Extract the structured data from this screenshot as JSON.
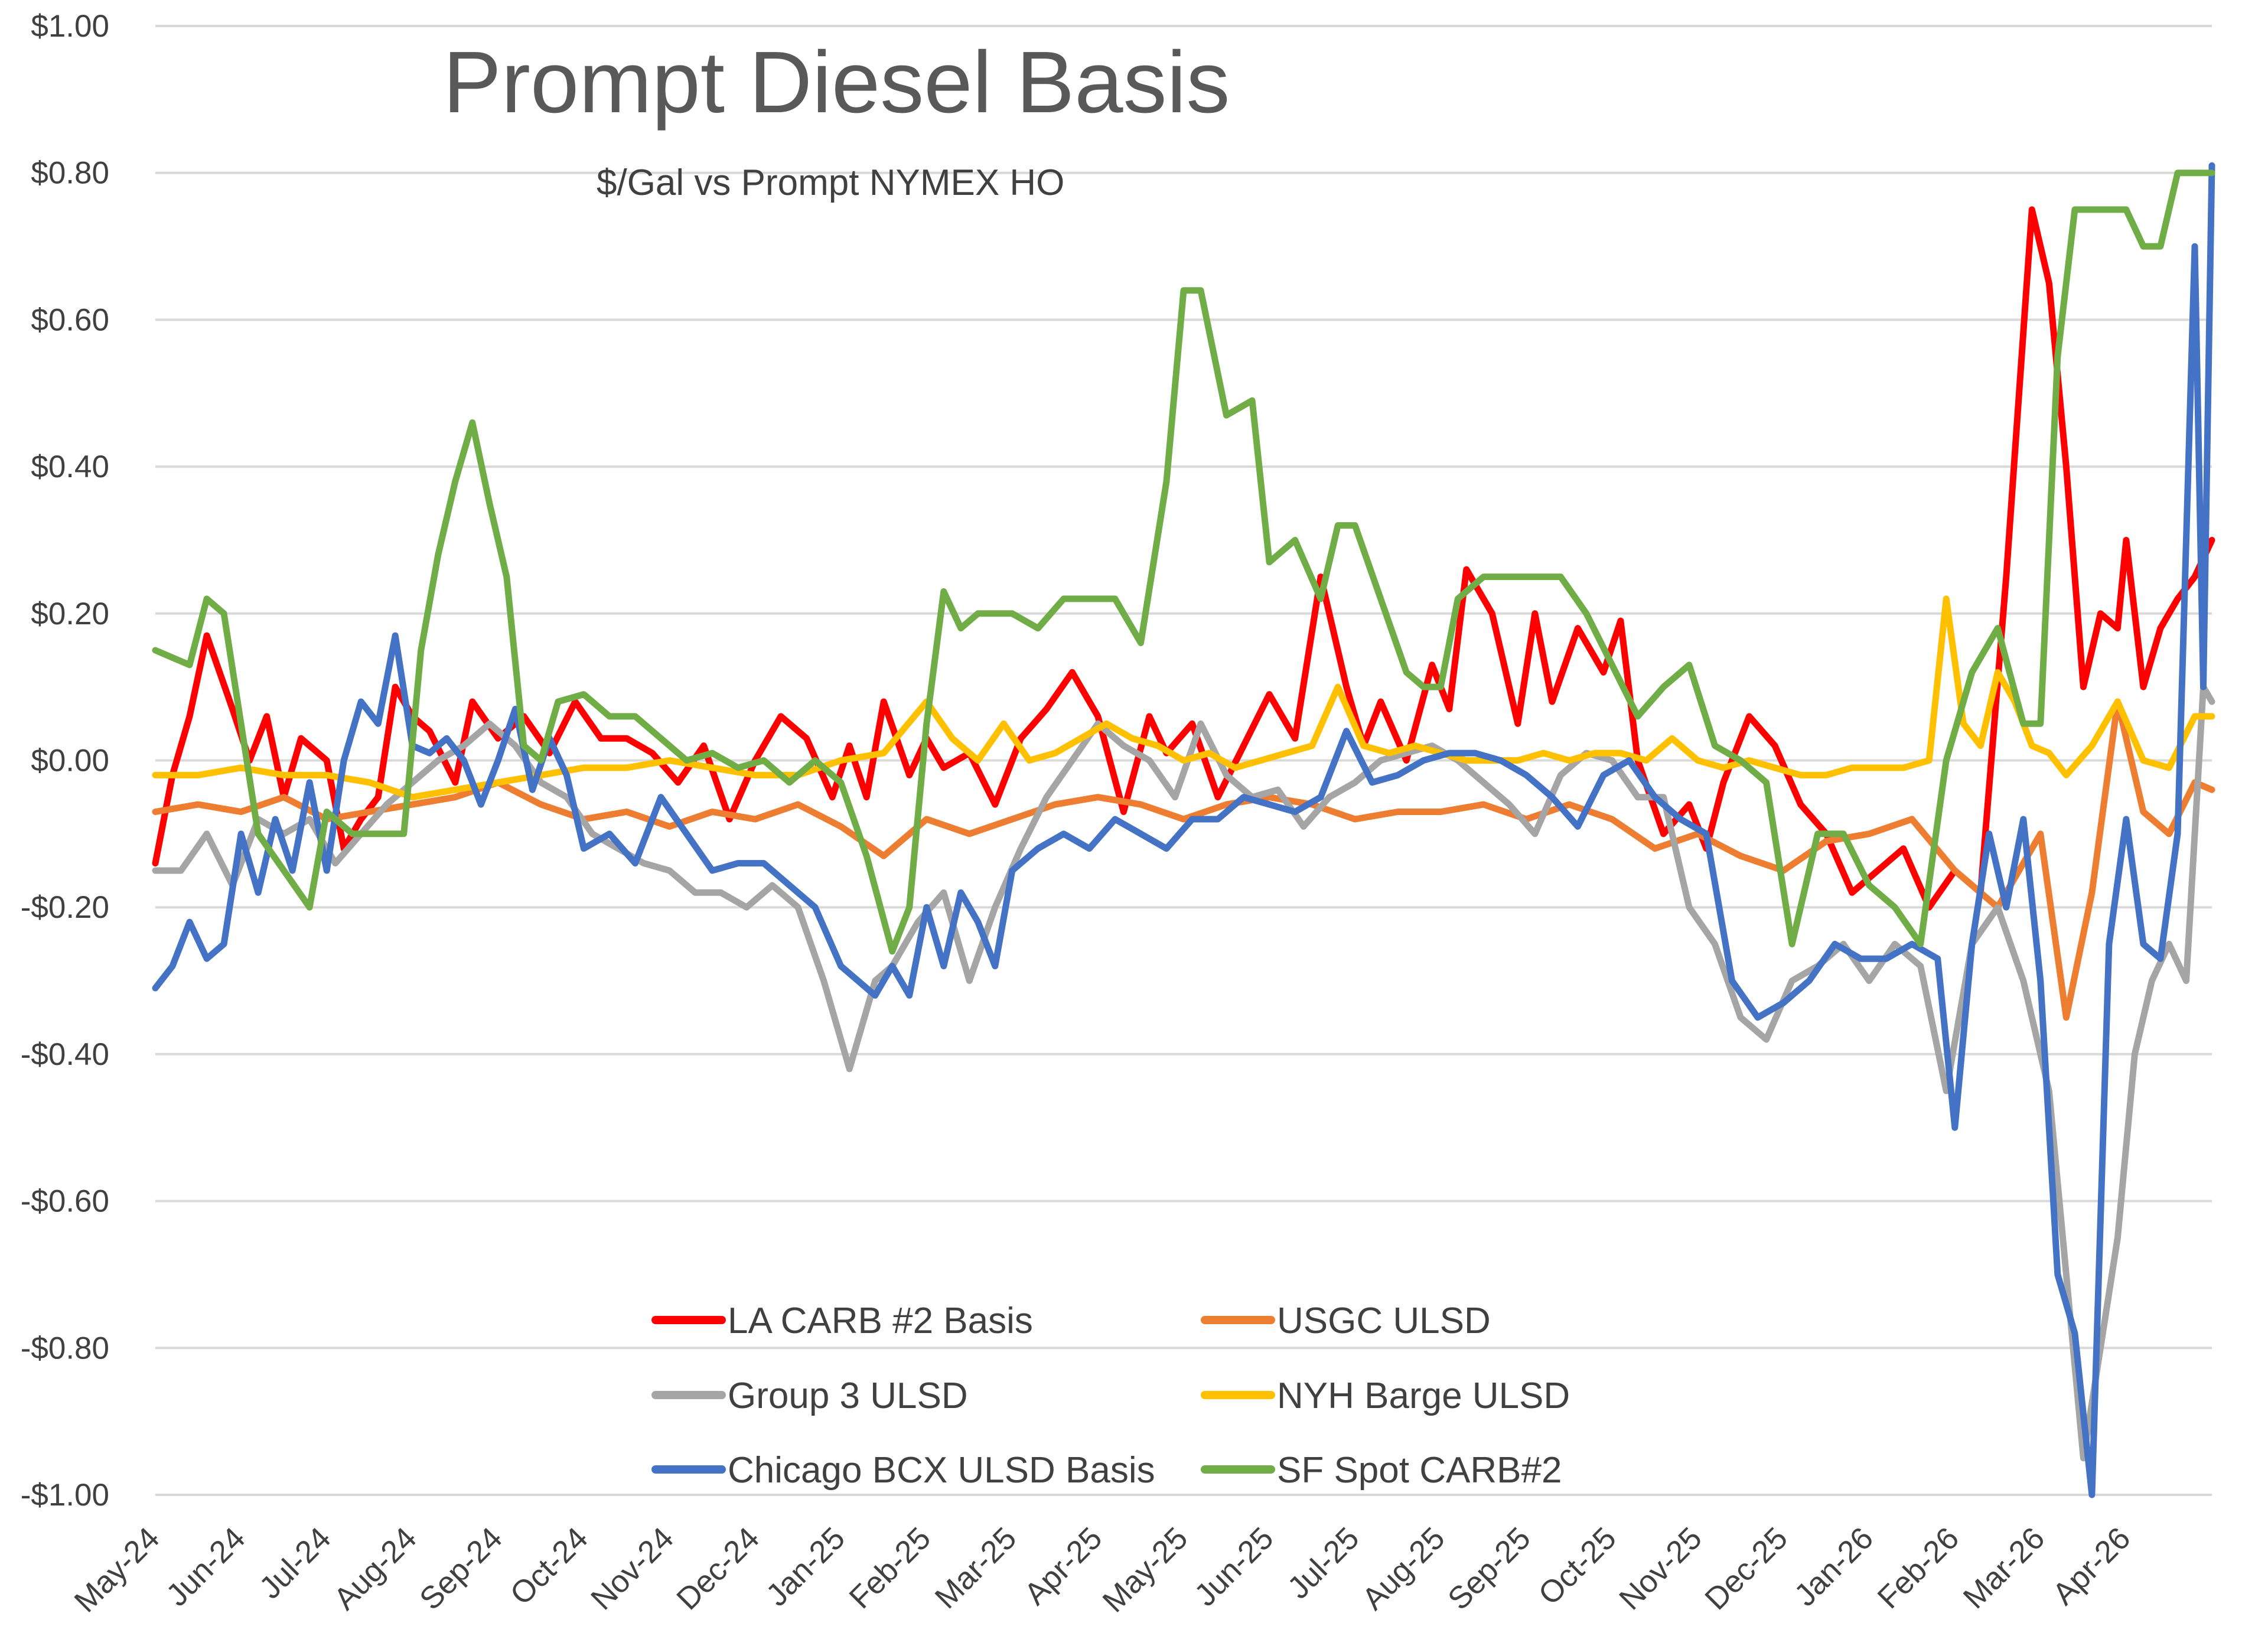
{
  "chart_data": {
    "type": "line",
    "title": "Prompt Diesel Basis",
    "subtitle": "$/Gal vs  Prompt NYMEX HO",
    "xlabel": "",
    "ylabel": "",
    "ylim": [
      -1.0,
      1.0
    ],
    "yticks": [
      1.0,
      0.8,
      0.6,
      0.4,
      0.2,
      0.0,
      -0.2,
      -0.4,
      -0.6,
      -0.8,
      -1.0
    ],
    "ytick_labels": [
      "$1.00",
      "$0.80",
      "$0.60",
      "$0.40",
      "$0.20",
      "$0.00",
      "-$0.20",
      "-$0.40",
      "-$0.60",
      "-$0.80",
      "-$1.00"
    ],
    "xlim": [
      0,
      24
    ],
    "x_categories": [
      "May-24",
      "Jun-24",
      "Jul-24",
      "Aug-24",
      "Sep-24",
      "Oct-24",
      "Nov-24",
      "Dec-24",
      "Jan-25",
      "Feb-25",
      "Mar-25",
      "Apr-25",
      "May-25",
      "Jun-25",
      "Jul-25",
      "Aug-25",
      "Sep-25",
      "Oct-25",
      "Nov-25",
      "Dec-25",
      "Jan-26",
      "Feb-26",
      "Mar-26",
      "Apr-26"
    ],
    "grid": "horizontal",
    "legend_position": "bottom-center",
    "series": [
      {
        "name": "LA CARB #2 Basis",
        "color": "#FF0000",
        "x": [
          0,
          0.2,
          0.4,
          0.6,
          0.9,
          1.1,
          1.3,
          1.5,
          1.7,
          2.0,
          2.2,
          2.4,
          2.6,
          2.8,
          3.0,
          3.2,
          3.5,
          3.7,
          4.0,
          4.3,
          4.6,
          4.9,
          5.2,
          5.5,
          5.8,
          6.1,
          6.4,
          6.7,
          7.0,
          7.3,
          7.6,
          7.9,
          8.1,
          8.3,
          8.5,
          8.8,
          9.0,
          9.2,
          9.5,
          9.8,
          10.1,
          10.4,
          10.7,
          11.0,
          11.3,
          11.6,
          11.8,
          12.1,
          12.4,
          12.7,
          13.0,
          13.3,
          13.6,
          13.9,
          14.1,
          14.3,
          14.6,
          14.9,
          15.1,
          15.3,
          15.6,
          15.9,
          16.1,
          16.3,
          16.6,
          16.9,
          17.1,
          17.3,
          17.6,
          17.9,
          18.1,
          18.3,
          18.6,
          18.9,
          19.2,
          19.5,
          19.8,
          20.1,
          20.4,
          20.7,
          21.0,
          21.3,
          21.6,
          21.9,
          22.1,
          22.3,
          22.5,
          22.7,
          22.9,
          23.0,
          23.2,
          23.4,
          23.6,
          23.8,
          24.0
        ],
        "y": [
          -0.14,
          -0.02,
          0.06,
          0.17,
          0.07,
          0.0,
          0.06,
          -0.05,
          0.03,
          0.0,
          -0.12,
          -0.08,
          -0.05,
          0.1,
          0.06,
          0.04,
          -0.03,
          0.08,
          0.03,
          0.06,
          0.01,
          0.08,
          0.03,
          0.03,
          0.01,
          -0.03,
          0.02,
          -0.08,
          0.0,
          0.06,
          0.03,
          -0.05,
          0.02,
          -0.05,
          0.08,
          -0.02,
          0.03,
          -0.01,
          0.01,
          -0.06,
          0.03,
          0.07,
          0.12,
          0.06,
          -0.07,
          0.06,
          0.01,
          0.05,
          -0.05,
          0.02,
          0.09,
          0.03,
          0.25,
          0.1,
          0.02,
          0.08,
          0.0,
          0.13,
          0.07,
          0.26,
          0.2,
          0.05,
          0.2,
          0.08,
          0.18,
          0.12,
          0.19,
          0.0,
          -0.1,
          -0.06,
          -0.12,
          -0.03,
          0.06,
          0.02,
          -0.06,
          -0.1,
          -0.18,
          -0.15,
          -0.12,
          -0.2,
          -0.15,
          -0.18,
          0.25,
          0.75,
          0.65,
          0.4,
          0.1,
          0.2,
          0.18,
          0.3,
          0.1,
          0.18,
          0.22,
          0.25,
          0.3
        ]
      },
      {
        "name": "USGC ULSD",
        "color": "#ED7D31",
        "x": [
          0,
          0.5,
          1.0,
          1.5,
          2.0,
          2.5,
          3.0,
          3.5,
          4.0,
          4.5,
          5.0,
          5.5,
          6.0,
          6.5,
          7.0,
          7.5,
          8.0,
          8.5,
          9.0,
          9.5,
          10.0,
          10.5,
          11.0,
          11.5,
          12.0,
          12.5,
          13.0,
          13.5,
          14.0,
          14.5,
          15.0,
          15.5,
          16.0,
          16.5,
          17.0,
          17.5,
          18.0,
          18.5,
          19.0,
          19.5,
          20.0,
          20.5,
          21.0,
          21.5,
          22.0,
          22.3,
          22.6,
          22.9,
          23.2,
          23.5,
          23.8,
          24.0
        ],
        "y": [
          -0.07,
          -0.06,
          -0.07,
          -0.05,
          -0.08,
          -0.07,
          -0.06,
          -0.05,
          -0.03,
          -0.06,
          -0.08,
          -0.07,
          -0.09,
          -0.07,
          -0.08,
          -0.06,
          -0.09,
          -0.13,
          -0.08,
          -0.1,
          -0.08,
          -0.06,
          -0.05,
          -0.06,
          -0.08,
          -0.06,
          -0.05,
          -0.06,
          -0.08,
          -0.07,
          -0.07,
          -0.06,
          -0.08,
          -0.06,
          -0.08,
          -0.12,
          -0.1,
          -0.13,
          -0.15,
          -0.11,
          -0.1,
          -0.08,
          -0.15,
          -0.2,
          -0.1,
          -0.35,
          -0.18,
          0.08,
          -0.07,
          -0.1,
          -0.03,
          -0.04
        ]
      },
      {
        "name": "Group 3 ULSD",
        "color": "#A5A5A5",
        "x": [
          0,
          0.3,
          0.6,
          0.9,
          1.2,
          1.5,
          1.8,
          2.1,
          2.4,
          2.7,
          3.0,
          3.3,
          3.6,
          3.9,
          4.2,
          4.5,
          4.8,
          5.1,
          5.4,
          5.7,
          6.0,
          6.3,
          6.6,
          6.9,
          7.2,
          7.5,
          7.8,
          8.1,
          8.4,
          8.6,
          8.9,
          9.2,
          9.5,
          9.8,
          10.1,
          10.4,
          10.7,
          11.0,
          11.3,
          11.6,
          11.9,
          12.2,
          12.5,
          12.8,
          13.1,
          13.4,
          13.7,
          14.0,
          14.3,
          14.6,
          14.9,
          15.2,
          15.5,
          15.8,
          16.1,
          16.4,
          16.7,
          17.0,
          17.3,
          17.6,
          17.9,
          18.2,
          18.5,
          18.8,
          19.1,
          19.4,
          19.7,
          20.0,
          20.3,
          20.6,
          20.9,
          21.2,
          21.5,
          21.8,
          22.1,
          22.3,
          22.5,
          22.7,
          22.9,
          23.1,
          23.3,
          23.5,
          23.7,
          23.9,
          24.0
        ],
        "y": [
          -0.15,
          -0.15,
          -0.1,
          -0.17,
          -0.08,
          -0.1,
          -0.08,
          -0.14,
          -0.1,
          -0.06,
          -0.03,
          0.0,
          0.02,
          0.05,
          0.02,
          -0.03,
          -0.05,
          -0.1,
          -0.12,
          -0.14,
          -0.15,
          -0.18,
          -0.18,
          -0.2,
          -0.17,
          -0.2,
          -0.3,
          -0.42,
          -0.3,
          -0.28,
          -0.22,
          -0.18,
          -0.3,
          -0.2,
          -0.12,
          -0.05,
          0.0,
          0.05,
          0.02,
          0.0,
          -0.05,
          0.05,
          -0.02,
          -0.05,
          -0.04,
          -0.09,
          -0.05,
          -0.03,
          0.0,
          0.01,
          0.02,
          0.0,
          -0.03,
          -0.06,
          -0.1,
          -0.02,
          0.01,
          0.0,
          -0.05,
          -0.05,
          -0.2,
          -0.25,
          -0.35,
          -0.38,
          -0.3,
          -0.28,
          -0.25,
          -0.3,
          -0.25,
          -0.28,
          -0.45,
          -0.25,
          -0.2,
          -0.3,
          -0.45,
          -0.7,
          -0.95,
          -0.8,
          -0.65,
          -0.4,
          -0.3,
          -0.25,
          -0.3,
          0.1,
          0.08
        ]
      },
      {
        "name": "NYH Barge ULSD",
        "color": "#FFC000",
        "x": [
          0,
          0.5,
          1.0,
          1.5,
          2.0,
          2.5,
          3.0,
          3.5,
          4.0,
          4.5,
          5.0,
          5.5,
          6.0,
          6.5,
          7.0,
          7.5,
          8.0,
          8.5,
          9.0,
          9.3,
          9.6,
          9.9,
          10.2,
          10.5,
          10.8,
          11.1,
          11.4,
          11.7,
          12.0,
          12.3,
          12.6,
          12.9,
          13.2,
          13.5,
          13.8,
          14.1,
          14.4,
          14.7,
          15.0,
          15.3,
          15.6,
          15.9,
          16.2,
          16.5,
          16.8,
          17.1,
          17.4,
          17.7,
          18.0,
          18.3,
          18.6,
          18.9,
          19.2,
          19.5,
          19.8,
          20.1,
          20.4,
          20.7,
          20.9,
          21.1,
          21.3,
          21.5,
          21.7,
          21.9,
          22.1,
          22.3,
          22.6,
          22.9,
          23.2,
          23.5,
          23.8,
          24.0
        ],
        "y": [
          -0.02,
          -0.02,
          -0.01,
          -0.02,
          -0.02,
          -0.03,
          -0.05,
          -0.04,
          -0.03,
          -0.02,
          -0.01,
          -0.01,
          0.0,
          -0.01,
          -0.02,
          -0.02,
          0.0,
          0.01,
          0.08,
          0.03,
          0.0,
          0.05,
          0.0,
          0.01,
          0.03,
          0.05,
          0.03,
          0.02,
          0.0,
          0.01,
          -0.01,
          0.0,
          0.01,
          0.02,
          0.1,
          0.02,
          0.01,
          0.02,
          0.01,
          0.0,
          0.0,
          0.0,
          0.01,
          0.0,
          0.01,
          0.01,
          0.0,
          0.03,
          0.0,
          -0.01,
          0.0,
          -0.01,
          -0.02,
          -0.02,
          -0.01,
          -0.01,
          -0.01,
          0.0,
          0.22,
          0.05,
          0.02,
          0.12,
          0.08,
          0.02,
          0.01,
          -0.02,
          0.02,
          0.08,
          0.0,
          -0.01,
          0.06,
          0.06
        ]
      },
      {
        "name": "Chicago BCX ULSD Basis",
        "color": "#4472C4",
        "x": [
          0,
          0.2,
          0.4,
          0.6,
          0.8,
          1.0,
          1.2,
          1.4,
          1.6,
          1.8,
          2.0,
          2.2,
          2.4,
          2.6,
          2.8,
          3.0,
          3.2,
          3.4,
          3.6,
          3.8,
          4.0,
          4.2,
          4.4,
          4.6,
          4.8,
          5.0,
          5.3,
          5.6,
          5.9,
          6.2,
          6.5,
          6.8,
          7.1,
          7.4,
          7.7,
          8.0,
          8.2,
          8.4,
          8.6,
          8.8,
          9.0,
          9.2,
          9.4,
          9.6,
          9.8,
          10.0,
          10.3,
          10.6,
          10.9,
          11.2,
          11.5,
          11.8,
          12.1,
          12.4,
          12.7,
          13.0,
          13.3,
          13.6,
          13.9,
          14.2,
          14.5,
          14.8,
          15.1,
          15.4,
          15.7,
          16.0,
          16.3,
          16.6,
          16.9,
          17.2,
          17.5,
          17.8,
          18.1,
          18.4,
          18.7,
          19.0,
          19.3,
          19.6,
          19.9,
          20.2,
          20.5,
          20.8,
          21.0,
          21.2,
          21.4,
          21.6,
          21.8,
          22.0,
          22.2,
          22.4,
          22.6,
          22.8,
          23.0,
          23.2,
          23.4,
          23.6,
          23.8,
          23.9,
          24.0
        ],
        "y": [
          -0.31,
          -0.28,
          -0.22,
          -0.27,
          -0.25,
          -0.1,
          -0.18,
          -0.08,
          -0.15,
          -0.03,
          -0.15,
          0.0,
          0.08,
          0.05,
          0.17,
          0.02,
          0.01,
          0.03,
          0.0,
          -0.06,
          0.0,
          0.07,
          -0.04,
          0.03,
          -0.02,
          -0.12,
          -0.1,
          -0.14,
          -0.05,
          -0.1,
          -0.15,
          -0.14,
          -0.14,
          -0.17,
          -0.2,
          -0.28,
          -0.3,
          -0.32,
          -0.28,
          -0.32,
          -0.2,
          -0.28,
          -0.18,
          -0.22,
          -0.28,
          -0.15,
          -0.12,
          -0.1,
          -0.12,
          -0.08,
          -0.1,
          -0.12,
          -0.08,
          -0.08,
          -0.05,
          -0.06,
          -0.07,
          -0.05,
          0.04,
          -0.03,
          -0.02,
          0.0,
          0.01,
          0.01,
          0.0,
          -0.02,
          -0.05,
          -0.09,
          -0.02,
          0.0,
          -0.05,
          -0.08,
          -0.1,
          -0.3,
          -0.35,
          -0.33,
          -0.3,
          -0.25,
          -0.27,
          -0.27,
          -0.25,
          -0.27,
          -0.5,
          -0.25,
          -0.1,
          -0.2,
          -0.08,
          -0.3,
          -0.7,
          -0.78,
          -1.0,
          -0.25,
          -0.08,
          -0.25,
          -0.27,
          -0.1,
          0.7,
          0.1,
          0.81
        ]
      },
      {
        "name": "SF Spot CARB#2",
        "color": "#70AD47",
        "x": [
          0,
          0.2,
          0.4,
          0.6,
          0.8,
          1.0,
          1.2,
          1.5,
          1.8,
          2.0,
          2.3,
          2.6,
          2.9,
          3.1,
          3.3,
          3.5,
          3.7,
          3.9,
          4.1,
          4.3,
          4.5,
          4.7,
          5.0,
          5.3,
          5.6,
          5.9,
          6.2,
          6.5,
          6.8,
          7.1,
          7.4,
          7.7,
          8.0,
          8.3,
          8.6,
          8.8,
          9.0,
          9.2,
          9.4,
          9.6,
          9.8,
          10.0,
          10.3,
          10.6,
          10.9,
          11.2,
          11.5,
          11.8,
          12.0,
          12.1,
          12.2,
          12.5,
          12.8,
          13.0,
          13.3,
          13.6,
          13.8,
          14.0,
          14.3,
          14.6,
          14.8,
          15.0,
          15.2,
          15.5,
          15.8,
          16.1,
          16.4,
          16.7,
          17.0,
          17.3,
          17.6,
          17.9,
          18.2,
          18.5,
          18.8,
          19.1,
          19.4,
          19.7,
          20.0,
          20.3,
          20.6,
          20.9,
          21.2,
          21.5,
          21.8,
          22.0,
          22.2,
          22.4,
          22.6,
          22.8,
          23.0,
          23.2,
          23.4,
          23.6,
          23.8,
          24.0
        ],
        "y": [
          0.15,
          0.14,
          0.13,
          0.22,
          0.2,
          0.05,
          -0.1,
          -0.15,
          -0.2,
          -0.07,
          -0.1,
          -0.1,
          -0.1,
          0.15,
          0.28,
          0.38,
          0.46,
          0.35,
          0.25,
          0.02,
          0.0,
          0.08,
          0.09,
          0.06,
          0.06,
          0.03,
          0.0,
          0.01,
          -0.01,
          0.0,
          -0.03,
          0.0,
          -0.03,
          -0.13,
          -0.26,
          -0.2,
          0.05,
          0.23,
          0.18,
          0.2,
          0.2,
          0.2,
          0.18,
          0.22,
          0.22,
          0.22,
          0.16,
          0.38,
          0.64,
          0.64,
          0.64,
          0.47,
          0.49,
          0.27,
          0.3,
          0.22,
          0.32,
          0.32,
          0.22,
          0.12,
          0.1,
          0.1,
          0.22,
          0.25,
          0.25,
          0.25,
          0.25,
          0.2,
          0.13,
          0.06,
          0.1,
          0.13,
          0.02,
          0.0,
          -0.03,
          -0.25,
          -0.1,
          -0.1,
          -0.17,
          -0.2,
          -0.25,
          0.0,
          0.12,
          0.18,
          0.05,
          0.05,
          0.55,
          0.75,
          0.75,
          0.75,
          0.75,
          0.7,
          0.7,
          0.8,
          0.8,
          0.8
        ]
      }
    ]
  }
}
